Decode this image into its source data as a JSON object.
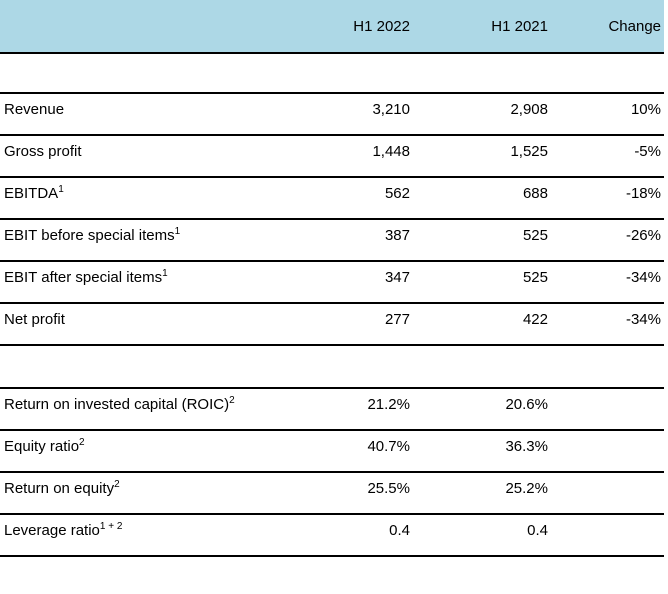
{
  "table": {
    "columns": {
      "label": "",
      "h1_2022": "H1 2022",
      "h1_2021": "H1 2021",
      "change": "Change"
    },
    "rows": [
      {
        "label": "Revenue",
        "sup": "",
        "h1_2022": "3,210",
        "h1_2021": "2,908",
        "change": "10%"
      },
      {
        "label": "Gross profit",
        "sup": "",
        "h1_2022": "1,448",
        "h1_2021": "1,525",
        "change": "-5%"
      },
      {
        "label": "EBITDA",
        "sup": "1",
        "h1_2022": "562",
        "h1_2021": "688",
        "change": "-18%"
      },
      {
        "label": "EBIT before special items",
        "sup": "1",
        "h1_2022": "387",
        "h1_2021": "525",
        "change": "-26%"
      },
      {
        "label": "EBIT after special items",
        "sup": "1",
        "h1_2022": "347",
        "h1_2021": "525",
        "change": "-34%"
      },
      {
        "label": "Net profit",
        "sup": "",
        "h1_2022": "277",
        "h1_2021": "422",
        "change": "-34%"
      },
      {
        "label": "Return on invested capital (ROIC)",
        "sup": "2",
        "h1_2022": "21.2%",
        "h1_2021": "20.6%",
        "change": ""
      },
      {
        "label": "Equity ratio",
        "sup": "2",
        "h1_2022": "40.7%",
        "h1_2021": "36.3%",
        "change": ""
      },
      {
        "label": "Return on equity",
        "sup": "2",
        "h1_2022": "25.5%",
        "h1_2021": "25.2%",
        "change": ""
      },
      {
        "label": "Leverage ratio",
        "sup": "1 + 2",
        "h1_2022": "0.4",
        "h1_2021": "0.4",
        "change": ""
      }
    ]
  },
  "colors": {
    "header_background": "#ADD8E6",
    "border": "#000000",
    "text": "#000000"
  }
}
